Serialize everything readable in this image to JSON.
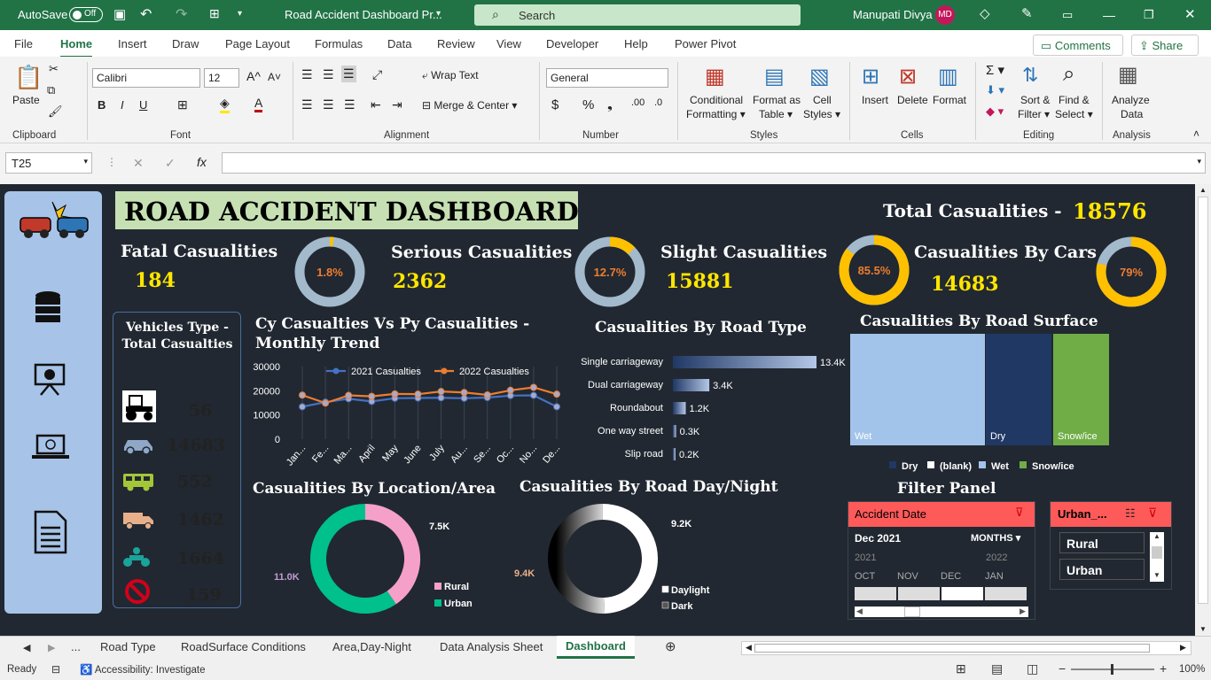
{
  "titlebar": {
    "autosave": "AutoSave",
    "toggle": "Off",
    "filename": "Road Accident Dashboard Pr...",
    "search": "Search",
    "user": "Manupati Divya",
    "initials": "MD"
  },
  "menu": [
    "File",
    "Home",
    "Insert",
    "Draw",
    "Page Layout",
    "Formulas",
    "Data",
    "Review",
    "View",
    "Developer",
    "Help",
    "Power Pivot"
  ],
  "buttons": {
    "comments": "Comments",
    "share": "Share"
  },
  "ribbon": {
    "paste": "Paste",
    "font_name": "Calibri",
    "font_size": "12",
    "wrap": "Wrap Text",
    "merge": "Merge & Center",
    "numfmt": "General",
    "cond": "Conditional",
    "cond2": "Formatting",
    "fmt_table": "Format as",
    "fmt_table2": "Table",
    "cell_styles": "Cell",
    "cell_styles2": "Styles",
    "insert": "Insert",
    "delete": "Delete",
    "format": "Format",
    "sort": "Sort &",
    "sort2": "Filter",
    "find": "Find &",
    "find2": "Select",
    "analyze": "Analyze",
    "analyze2": "Data",
    "groups": [
      "Clipboard",
      "Font",
      "Alignment",
      "Number",
      "Styles",
      "Cells",
      "Editing",
      "Analysis"
    ]
  },
  "namebox": "T25",
  "dashboard": {
    "title": "ROAD ACCIDENT DASHBOARD",
    "total_label": "Total Casualities -",
    "total_value": "18576",
    "kpis": [
      {
        "label": "Fatal Casualities",
        "value": "184",
        "pct": "1.8%",
        "frac": 0.018
      },
      {
        "label": "Serious Casualities",
        "value": "2362",
        "pct": "12.7%",
        "frac": 0.127
      },
      {
        "label": "Slight Casualities",
        "value": "15881",
        "pct": "85.5%",
        "frac": 0.855
      },
      {
        "label": "Casualities By Cars",
        "value": "14683",
        "pct": "79%",
        "frac": 0.79
      }
    ],
    "vehicles_title": "Vehicles Type - Total Casualties",
    "vehicles": [
      {
        "icon": "tractor-icon",
        "value": "56",
        "color": "#ffffff"
      },
      {
        "icon": "car-icon",
        "value": "14683",
        "color": "#8fa8c8"
      },
      {
        "icon": "bus-icon",
        "value": "552",
        "color": "#a4c639"
      },
      {
        "icon": "truck-icon",
        "value": "1462",
        "color": "#e8b08a"
      },
      {
        "icon": "bike-icon",
        "value": "1664",
        "color": "#1aa39a"
      },
      {
        "icon": "no-entry-icon",
        "value": "159",
        "color": "#d0021b"
      }
    ],
    "trend_title": "Cy Casualties Vs Py Casualities - Monthly Trend",
    "road_type_title": "Casualities By Road Type",
    "road_surface_title": "Casualities By Road Surface",
    "location_title": "Casualities By Location/Area",
    "daynight_title": "Casualities By Road Day/Night",
    "filter_title": "Filter Panel",
    "filter": {
      "accident_date": "Accident Date",
      "period": "Dec 2021",
      "months": "MONTHS",
      "year1": "2021",
      "year2": "2022",
      "months_list": [
        "OCT",
        "NOV",
        "DEC",
        "JAN"
      ],
      "urban_title": "Urban_...",
      "options": [
        "Rural",
        "Urban"
      ]
    }
  },
  "sheet_tabs": [
    "...",
    "Road Type",
    "RoadSurface Conditions",
    "Area,Day-Night",
    "Data Analysis Sheet",
    "Dashboard"
  ],
  "status": {
    "ready": "Ready",
    "access": "Accessibility: Investigate",
    "zoom": "100%"
  },
  "chart_data": [
    {
      "type": "line",
      "title": "Cy Casualties Vs Py Casualities - Monthly Trend",
      "categories": [
        "Jan...",
        "Fe...",
        "Ma...",
        "April",
        "May",
        "June",
        "July",
        "Au...",
        "Se...",
        "Oc...",
        "No...",
        "De..."
      ],
      "series": [
        {
          "name": "2021 Casualties",
          "values": [
            13400,
            15300,
            16700,
            15600,
            16900,
            17000,
            17100,
            16900,
            17200,
            18000,
            18100,
            13400
          ],
          "color": "#4472c4"
        },
        {
          "name": "2022 Casualties",
          "values": [
            18200,
            14900,
            18100,
            17700,
            18700,
            18600,
            19700,
            19300,
            18300,
            20200,
            21400,
            18600
          ],
          "color": "#ed7d31"
        }
      ],
      "ylim": [
        0,
        30000
      ],
      "yticks": [
        "30000",
        "20000",
        "10000",
        "0"
      ]
    },
    {
      "type": "bar",
      "title": "Casualities By Road Type",
      "categories": [
        "Single carriageway",
        "Dual carriageway",
        "Roundabout",
        "One way street",
        "Slip road"
      ],
      "values": [
        13400,
        3400,
        1200,
        300,
        200
      ],
      "labels": [
        "13.4K",
        "3.4K",
        "1.2K",
        "0.3K",
        "0.2K"
      ]
    },
    {
      "type": "heatmap",
      "title": "Casualities By Road Surface",
      "categories": [
        "Wet",
        "Dry",
        "Snow/ice"
      ],
      "legend": [
        "Dry",
        "(blank)",
        "Wet",
        "Snow/ice"
      ],
      "colors": [
        "#a3c4ea",
        "#203864",
        "#70ad47"
      ]
    },
    {
      "type": "pie",
      "title": "Casualities By Location/Area",
      "categories": [
        "Rural",
        "Urban"
      ],
      "values": [
        7500,
        11000
      ],
      "labels": [
        "7.5K",
        "11.0K"
      ],
      "colors": [
        "#f5a0c8",
        "#00c08b"
      ]
    },
    {
      "type": "pie",
      "title": "Casualities By Road Day/Night",
      "categories": [
        "Daylight",
        "Dark"
      ],
      "values": [
        9200,
        9400
      ],
      "labels": [
        "9.2K",
        "9.4K"
      ]
    }
  ]
}
